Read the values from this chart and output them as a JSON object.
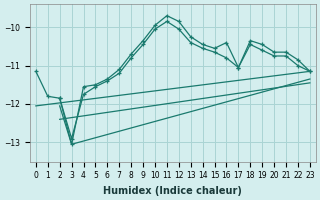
{
  "xlabel": "Humidex (Indice chaleur)",
  "ylabel": "",
  "background_color": "#d4eeee",
  "grid_color": "#aad4d4",
  "line_color": "#1a7a6e",
  "xlim": [
    -0.5,
    23.5
  ],
  "ylim": [
    -13.5,
    -9.4
  ],
  "yticks": [
    -13,
    -12,
    -11,
    -10
  ],
  "xticks": [
    0,
    1,
    2,
    3,
    4,
    5,
    6,
    7,
    8,
    9,
    10,
    11,
    12,
    13,
    14,
    15,
    16,
    17,
    18,
    19,
    20,
    21,
    22,
    23
  ],
  "series": [
    {
      "x": [
        0,
        1,
        2,
        3,
        4,
        5,
        6,
        7,
        8,
        9,
        10,
        11,
        12,
        13,
        14,
        15,
        16,
        17,
        18,
        19,
        20,
        21,
        22,
        23
      ],
      "y": [
        -11.15,
        -11.8,
        -11.85,
        -12.9,
        -11.75,
        -11.55,
        -11.4,
        -11.2,
        -10.8,
        -10.45,
        -10.05,
        -9.85,
        -10.05,
        -10.4,
        -10.55,
        -10.65,
        -10.8,
        -11.05,
        -10.45,
        -10.6,
        -10.75,
        -10.75,
        -11.0,
        -11.15
      ],
      "marker": true,
      "linestyle": "-"
    },
    {
      "x": [
        2,
        3,
        4,
        5,
        6,
        7,
        8,
        9,
        10,
        11,
        12,
        13,
        14,
        15,
        16,
        17,
        18,
        19,
        20,
        21,
        22,
        23
      ],
      "y": [
        -11.85,
        -13.05,
        -11.55,
        -11.5,
        -11.35,
        -11.1,
        -10.7,
        -10.35,
        -9.95,
        -9.7,
        -9.85,
        -10.25,
        -10.45,
        -10.55,
        -10.4,
        -11.05,
        -10.35,
        -10.45,
        -10.65,
        -10.65,
        -10.85,
        -11.15
      ],
      "marker": true,
      "linestyle": "-"
    },
    {
      "x": [
        0,
        23
      ],
      "y": [
        -12.05,
        -11.15
      ],
      "marker": false,
      "linestyle": "-"
    },
    {
      "x": [
        2,
        23
      ],
      "y": [
        -12.4,
        -11.45
      ],
      "marker": false,
      "linestyle": "-"
    },
    {
      "x": [
        2,
        3,
        23
      ],
      "y": [
        -12.05,
        -13.05,
        -11.35
      ],
      "marker": false,
      "linestyle": "-"
    }
  ]
}
